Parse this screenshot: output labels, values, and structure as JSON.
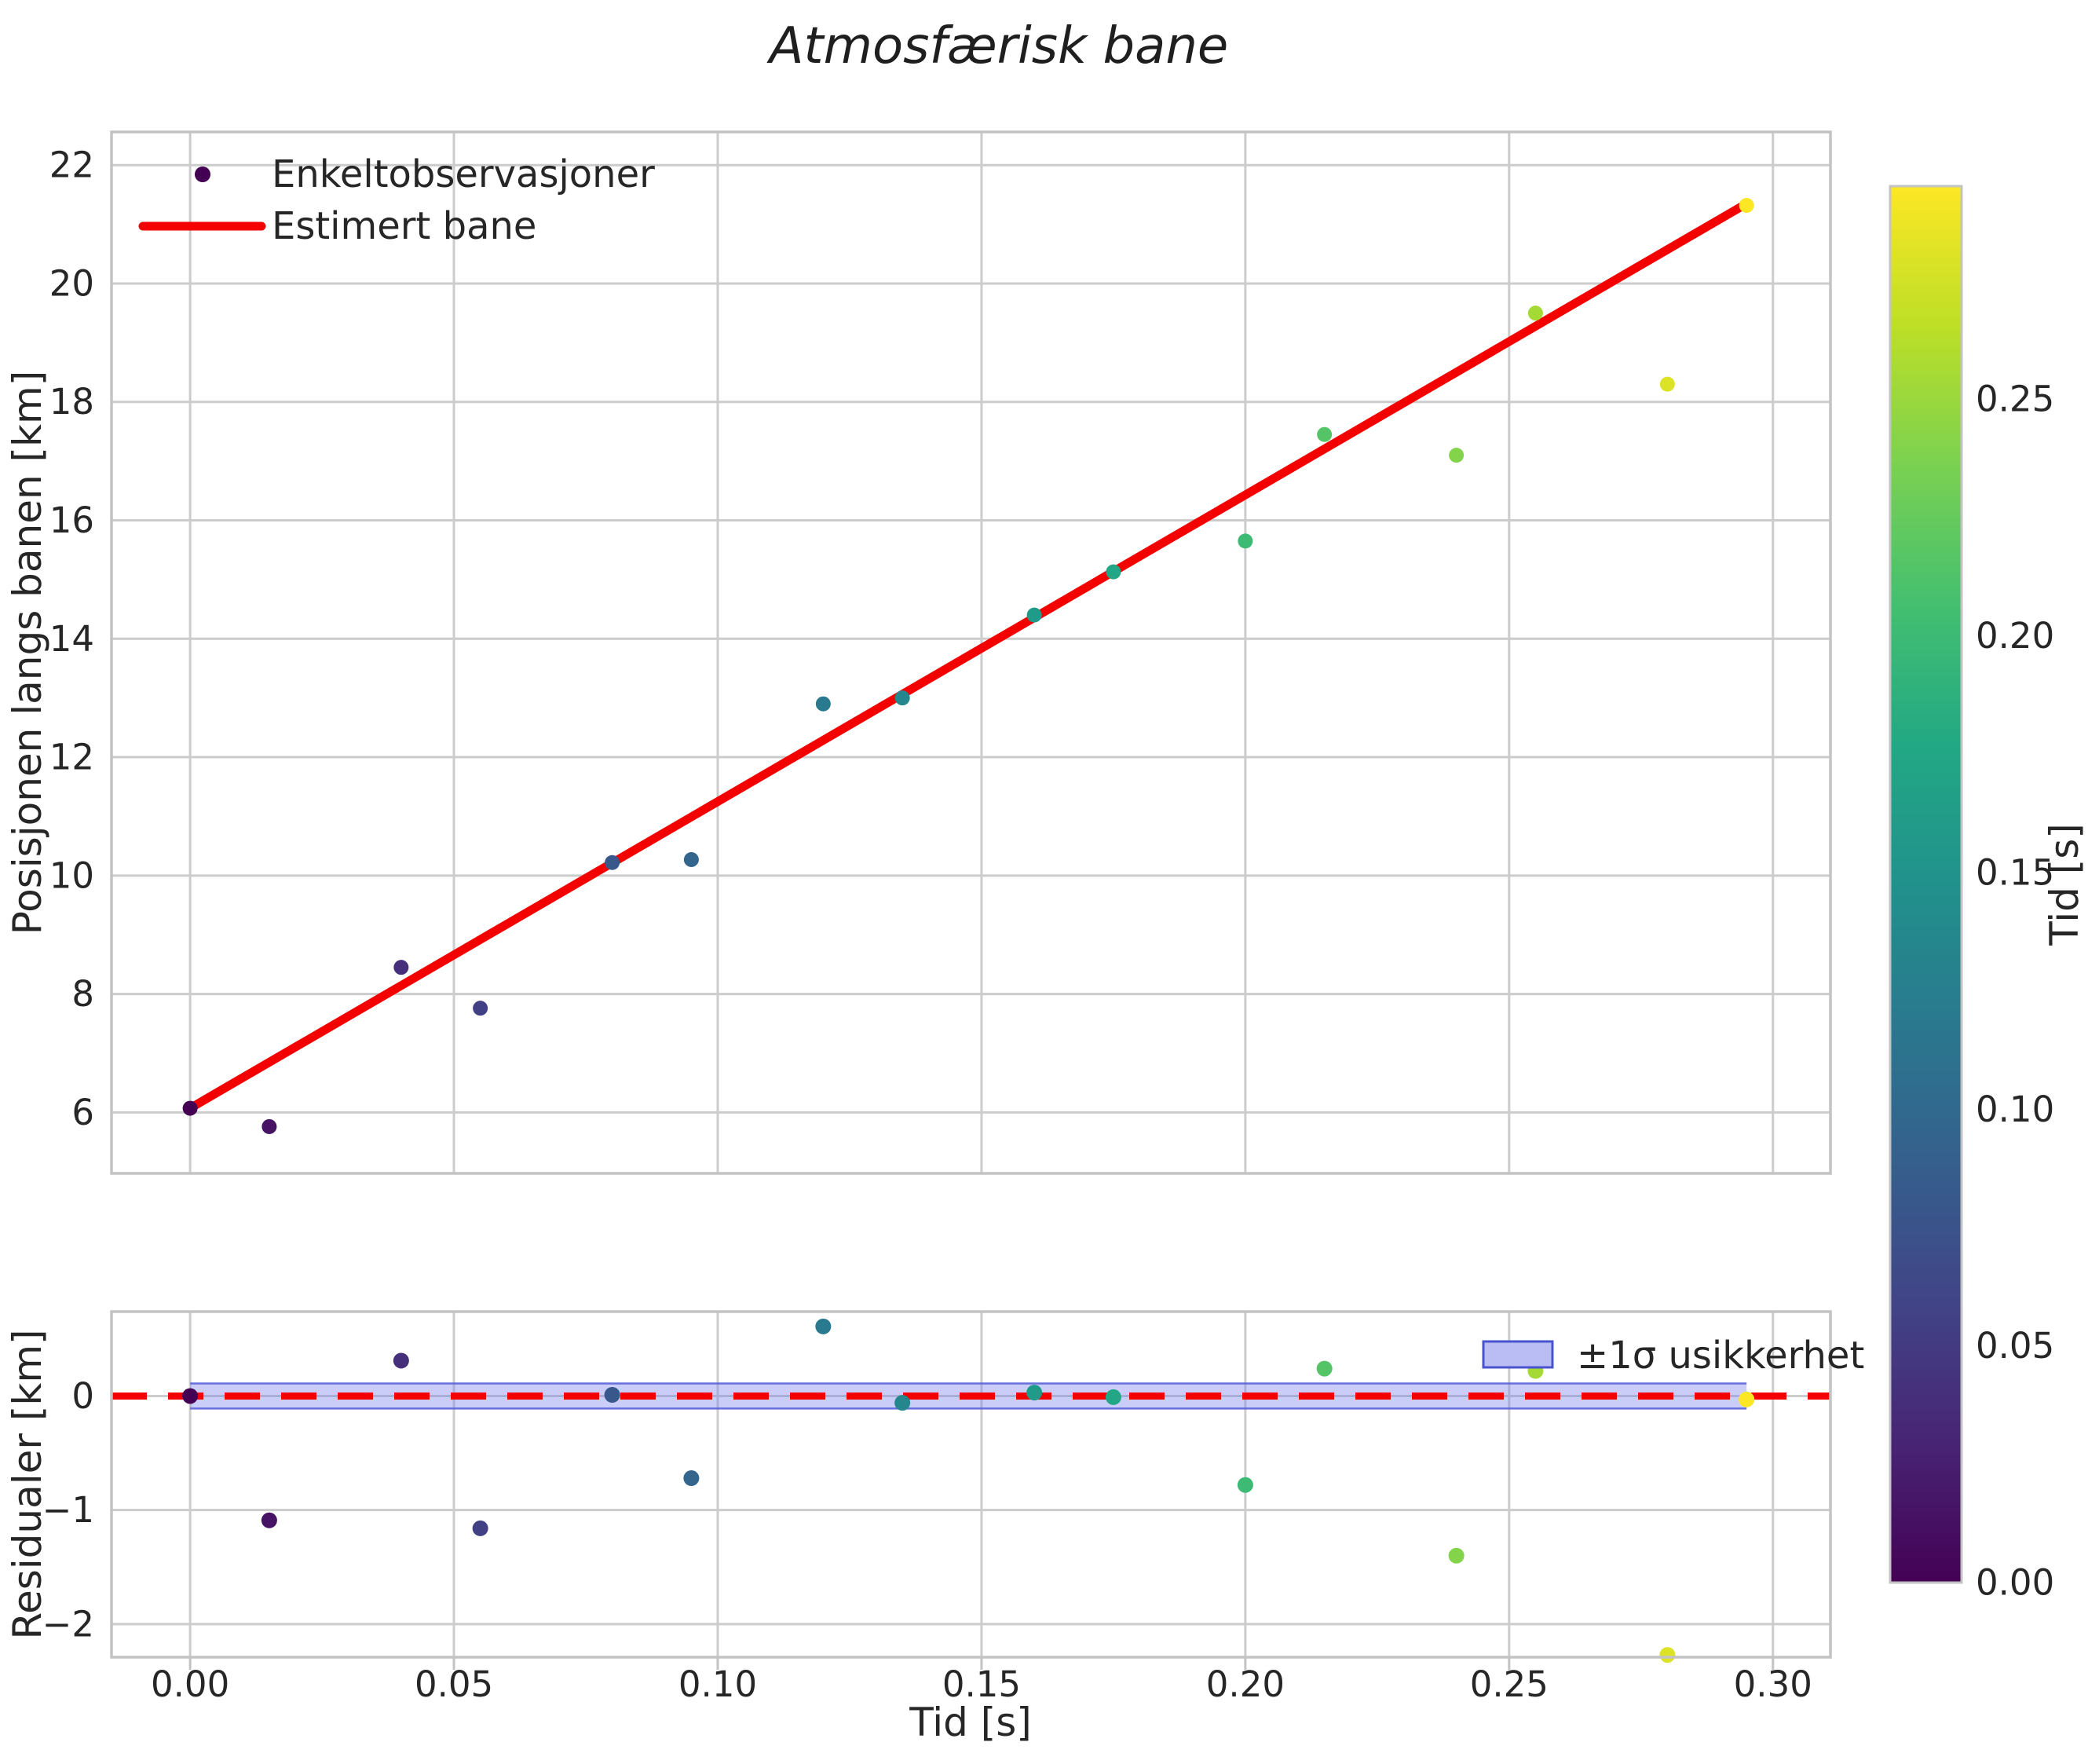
{
  "title": "Atmosfærisk bane",
  "colors": {
    "background": "#ffffff",
    "text": "#262626",
    "grid": "#cccccc",
    "spine": "#c3c3c3",
    "fit_line_red": "#f40000",
    "band_fill": "#7b83ee",
    "band_fill_opacity": 0.4,
    "band_edge": "#5a63d8",
    "legend_patch_fill": "#b9bdf3",
    "legend_patch_edge": "#4a53cf"
  },
  "main_plot": {
    "ylabel": "Posisjonen langs banen [km]",
    "legend_observations": "Enkeltobservasjoner",
    "legend_fit": "Estimert bane"
  },
  "residual_plot": {
    "ylabel": "Residualer [km]",
    "xlabel": "Tid [s]",
    "legend_band": "±1σ usikkerhet"
  },
  "colorbar": {
    "label": "Tid [s]",
    "vmin": 0.0,
    "vmax": 0.295,
    "ticks": [
      0,
      0.05,
      0.1,
      0.15,
      0.2,
      0.25
    ],
    "tick_labels": [
      "0.00",
      "0.05",
      "0.10",
      "0.15",
      "0.20",
      "0.25"
    ]
  },
  "chart_data": {
    "type": "scatter",
    "title": "Atmosfærisk bane",
    "xlabel": "Tid [s]",
    "ylabel": "Posisjonen langs banen [km]",
    "ylabel_residual": "Residualer [km]",
    "legend": [
      "Enkeltobservasjoner",
      "Estimert bane",
      "±1σ usikkerhet"
    ],
    "legend_position": [
      "main: upper left",
      "residual: upper right"
    ],
    "color_by": "t",
    "points_t": [
      0.0,
      0.015,
      0.04,
      0.055,
      0.08,
      0.095,
      0.12,
      0.135,
      0.16,
      0.175,
      0.2,
      0.215,
      0.24,
      0.255,
      0.28,
      0.295
    ],
    "points_s_km": [
      6.07,
      5.76,
      8.45,
      7.76,
      10.22,
      10.27,
      12.9,
      13.0,
      14.4,
      15.13,
      15.65,
      17.45,
      17.1,
      19.5,
      18.3,
      21.32
    ],
    "residuals_km": [
      0.0,
      -1.09,
      0.31,
      -1.16,
      0.01,
      -0.72,
      0.61,
      -0.06,
      0.03,
      -0.01,
      -0.78,
      0.24,
      -1.4,
      0.22,
      -2.27,
      -0.03
    ],
    "fit_line": {
      "t": [
        0.0,
        0.295
      ],
      "s_km": [
        6.07,
        21.35
      ],
      "slope_km_per_s": 51.8,
      "intercept_km": 6.07
    },
    "uncertainty_band": {
      "t_range": [
        0.0,
        0.295
      ],
      "half_width_km": 0.11
    },
    "axes": {
      "main": {
        "xlim": [
          -0.0149,
          0.3109
        ],
        "ylim": [
          4.97,
          22.56
        ],
        "xticks": [
          0.0,
          0.05,
          0.1,
          0.15,
          0.2,
          0.25,
          0.3
        ],
        "yticks": [
          6,
          8,
          10,
          12,
          14,
          16,
          18,
          20,
          22
        ],
        "grid": true
      },
      "residual": {
        "xlim": [
          -0.0149,
          0.3109
        ],
        "ylim": [
          -2.29,
          0.74
        ],
        "yticks": [
          0,
          -1,
          -2
        ],
        "zero_line": 0,
        "grid": true
      }
    },
    "colormap": {
      "name": "viridis",
      "stops": [
        "#440154",
        "#482475",
        "#414487",
        "#355f8d",
        "#2a788e",
        "#21918c",
        "#22a884",
        "#44bf70",
        "#7ad151",
        "#bddf26",
        "#fde725"
      ]
    }
  }
}
